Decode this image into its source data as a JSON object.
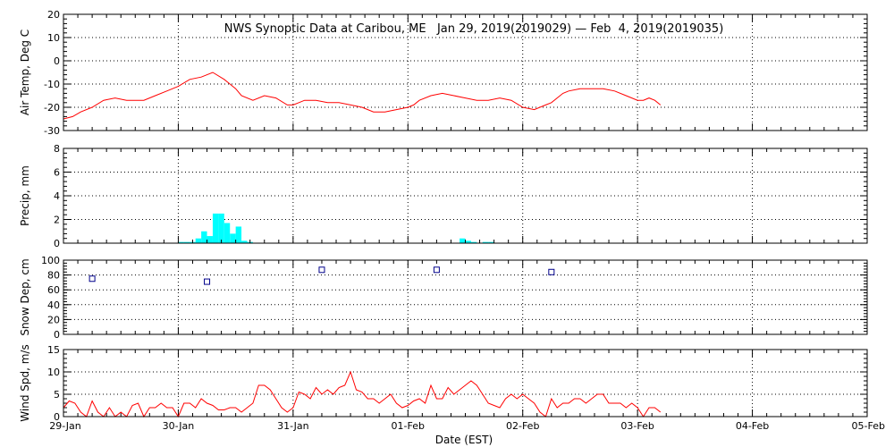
{
  "title": "NWS Synoptic Data at Caribou, ME   Jan 29, 2019(2019029) — Feb  4, 2019(2019035)",
  "xlabel": "Date (EST)",
  "x_ticks": [
    "29-Jan",
    "30-Jan",
    "31-Jan",
    "01-Feb",
    "02-Feb",
    "03-Feb",
    "04-Feb",
    "05-Feb"
  ],
  "colors": {
    "temp": "#ff0000",
    "precip": "#00ffff",
    "snow": "#00008b",
    "wind": "#ff0000",
    "grid": "#000000"
  },
  "chart_data": [
    {
      "type": "line",
      "title": "NWS Synoptic Data at Caribou, ME   Jan 29, 2019(2019029) — Feb  4, 2019(2019035)",
      "ylabel": "Air Temp, Deg C",
      "ylim": [
        -30,
        20
      ],
      "y_ticks": [
        "20",
        "10",
        "0",
        "-10",
        "-20",
        "-30"
      ],
      "xlim_days": [
        0,
        7
      ],
      "grid": true,
      "series": [
        {
          "x_days": [
            0.0,
            0.08,
            0.15,
            0.25,
            0.35,
            0.45,
            0.55,
            0.6,
            0.7,
            0.8,
            0.9,
            1.0,
            1.1,
            1.2,
            1.3,
            1.4,
            1.5,
            1.55,
            1.65,
            1.75,
            1.85,
            1.95,
            2.0,
            2.05,
            2.1,
            2.15,
            2.2,
            2.3,
            2.4,
            2.5,
            2.6,
            2.7,
            2.8,
            2.9,
            3.0,
            3.05,
            3.1,
            3.2,
            3.3,
            3.4,
            3.5,
            3.6,
            3.7,
            3.8,
            3.9,
            4.0,
            4.1,
            4.2,
            4.25,
            4.3,
            4.35,
            4.4,
            4.5,
            4.6,
            4.7,
            4.8,
            4.9,
            5.0,
            5.05,
            5.1,
            5.15,
            5.2
          ],
          "values": [
            -25,
            -24,
            -22,
            -20,
            -17,
            -16,
            -17,
            -17,
            -17,
            -15,
            -13,
            -11,
            -8,
            -7,
            -5,
            -8,
            -12,
            -15,
            -17,
            -15,
            -16,
            -19,
            -19,
            -18,
            -17,
            -17,
            -17,
            -18,
            -18,
            -19,
            -20,
            -22,
            -22,
            -21,
            -20,
            -19,
            -17,
            -15,
            -14,
            -15,
            -16,
            -17,
            -17,
            -16,
            -17,
            -20,
            -21,
            -19,
            -18,
            -16,
            -14,
            -13,
            -12,
            -12,
            -12,
            -13,
            -15,
            -17,
            -17,
            -16,
            -17,
            -19
          ]
        }
      ]
    },
    {
      "type": "bar",
      "ylabel": "Precip, mm",
      "ylim": [
        0,
        8
      ],
      "y_ticks": [
        "8",
        "6",
        "4",
        "2",
        "0"
      ],
      "xlim_days": [
        0,
        7
      ],
      "grid": true,
      "bar_width_days": 0.05,
      "x_days": [
        1.0,
        1.05,
        1.1,
        1.15,
        1.2,
        1.25,
        1.3,
        1.35,
        1.4,
        1.45,
        1.5,
        1.55,
        1.6,
        3.45,
        3.5,
        3.55,
        3.65,
        3.7
      ],
      "values": [
        0.1,
        0.1,
        0.1,
        0.4,
        1.0,
        0.6,
        2.5,
        2.5,
        1.7,
        0.8,
        1.4,
        0.2,
        0.1,
        0.4,
        0.2,
        0.1,
        0.1,
        0.1
      ]
    },
    {
      "type": "scatter",
      "ylabel": "Snow Dep, cm",
      "ylim": [
        0,
        100
      ],
      "y_ticks": [
        "100",
        "80",
        "60",
        "40",
        "20",
        "0"
      ],
      "xlim_days": [
        0,
        7
      ],
      "grid": true,
      "x_days": [
        0.25,
        1.25,
        2.25,
        3.25,
        4.25
      ],
      "values": [
        75,
        71,
        87,
        87,
        84
      ]
    },
    {
      "type": "line",
      "ylabel": "Wind Spd, m/s",
      "ylim": [
        0,
        15
      ],
      "y_ticks": [
        "15",
        "10",
        "5",
        "0"
      ],
      "xlim_days": [
        0,
        7
      ],
      "grid": true,
      "series": [
        {
          "x_days": [
            0.0,
            0.05,
            0.1,
            0.15,
            0.2,
            0.25,
            0.3,
            0.35,
            0.4,
            0.45,
            0.5,
            0.55,
            0.6,
            0.65,
            0.7,
            0.75,
            0.8,
            0.85,
            0.9,
            0.95,
            1.0,
            1.05,
            1.1,
            1.15,
            1.2,
            1.25,
            1.3,
            1.35,
            1.4,
            1.45,
            1.5,
            1.55,
            1.6,
            1.65,
            1.7,
            1.75,
            1.8,
            1.85,
            1.9,
            1.95,
            2.0,
            2.05,
            2.1,
            2.15,
            2.2,
            2.25,
            2.3,
            2.35,
            2.4,
            2.45,
            2.5,
            2.55,
            2.6,
            2.65,
            2.7,
            2.75,
            2.8,
            2.85,
            2.9,
            2.95,
            3.0,
            3.05,
            3.1,
            3.15,
            3.2,
            3.25,
            3.3,
            3.35,
            3.4,
            3.45,
            3.5,
            3.55,
            3.6,
            3.65,
            3.7,
            3.75,
            3.8,
            3.85,
            3.9,
            3.95,
            4.0,
            4.05,
            4.1,
            4.15,
            4.2,
            4.25,
            4.3,
            4.35,
            4.4,
            4.45,
            4.5,
            4.55,
            4.6,
            4.65,
            4.7,
            4.75,
            4.8,
            4.85,
            4.9,
            4.95,
            5.0,
            5.05,
            5.1,
            5.15,
            5.2
          ],
          "values": [
            2,
            3.5,
            3,
            1,
            0,
            3.5,
            1,
            0,
            2,
            0,
            1,
            0,
            2.5,
            3,
            0,
            2,
            2,
            3,
            2,
            2,
            0,
            3,
            3,
            2,
            4,
            3,
            2.5,
            1.5,
            1.5,
            2,
            2,
            1,
            2,
            3,
            7,
            7,
            6,
            4,
            2,
            1,
            2,
            5.5,
            5,
            4,
            6.5,
            5,
            6,
            5,
            6.5,
            7,
            10,
            6,
            5.5,
            4,
            4,
            3,
            4,
            5,
            3,
            2,
            2.5,
            3.5,
            4,
            3,
            7,
            4,
            4,
            6.5,
            5,
            6,
            7,
            8,
            7,
            5,
            3,
            2.5,
            2,
            4,
            5,
            4,
            5,
            4,
            3,
            1,
            0,
            4,
            2,
            3,
            3,
            4,
            4,
            3,
            4,
            5,
            5,
            3,
            3,
            3,
            2,
            3,
            2,
            0,
            2,
            2,
            1
          ]
        }
      ]
    }
  ]
}
